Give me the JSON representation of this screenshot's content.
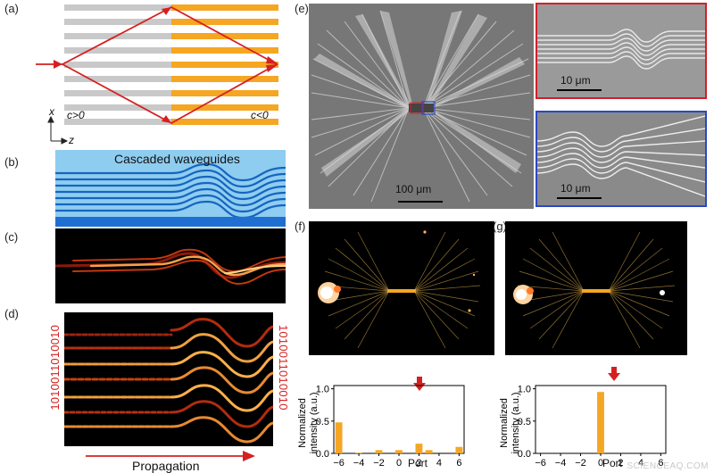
{
  "panels": {
    "a": {
      "label": "(a)",
      "c_pos": "c>0",
      "c_neg": "c<0",
      "axis_x": "x",
      "axis_z": "z"
    },
    "b": {
      "label": "(b)",
      "title": "Cascaded waveguides"
    },
    "c": {
      "label": "(c)"
    },
    "d": {
      "label": "(d)",
      "bits_left": "1010011010010",
      "bits_right": "1010011010010",
      "propagation": "Propagation"
    },
    "e": {
      "label": "(e)",
      "scale_main": "100 μm",
      "scale_red": "10 μm",
      "scale_blue": "10 μm"
    },
    "f": {
      "label": "(f)"
    },
    "g": {
      "label": "(g)"
    }
  },
  "colors": {
    "orange": "#f5a623",
    "red": "#d62020",
    "blue": "#2b47c4",
    "sky": "#7ec3ea",
    "wg_blue": "#1565c0"
  },
  "chart_data": [
    {
      "type": "bar",
      "panel": "f",
      "x": [
        -6,
        -4,
        -2,
        0,
        2,
        4,
        6
      ],
      "categories": [
        -6,
        -5,
        -4,
        -3,
        -2,
        -1,
        0,
        1,
        2,
        3,
        4,
        5,
        6
      ],
      "values": [
        0.48,
        0.0,
        0.01,
        0.0,
        0.05,
        0.0,
        0.05,
        0.0,
        0.15,
        0.05,
        0.0,
        0.0,
        0.1
      ],
      "xlabel": "Port",
      "ylabel": "Normalized intensity (a.u.)",
      "xticks": [
        "−6",
        "−4",
        "−2",
        "0",
        "2",
        "4",
        "6"
      ],
      "yticks": [
        "0.0",
        "0.5",
        "1.0"
      ],
      "ylim": [
        0,
        1.05
      ],
      "bar_color": "#f5a623"
    },
    {
      "type": "bar",
      "panel": "g",
      "categories": [
        -6,
        -5,
        -4,
        -3,
        -2,
        -1,
        0,
        1,
        2,
        3,
        4,
        5,
        6
      ],
      "values": [
        0,
        0,
        0,
        0,
        0,
        0,
        0.95,
        0,
        0,
        0,
        0,
        0,
        0
      ],
      "xlabel": "Port",
      "ylabel": "Normalized intensity (a.u.)",
      "xticks": [
        "−6",
        "−4",
        "−2",
        "0",
        "2",
        "4",
        "6"
      ],
      "yticks": [
        "0.0",
        "0.5",
        "1.0"
      ],
      "ylim": [
        0,
        1.05
      ],
      "bar_color": "#f5a623"
    }
  ],
  "watermark": "SCIENCEAQ.COM"
}
